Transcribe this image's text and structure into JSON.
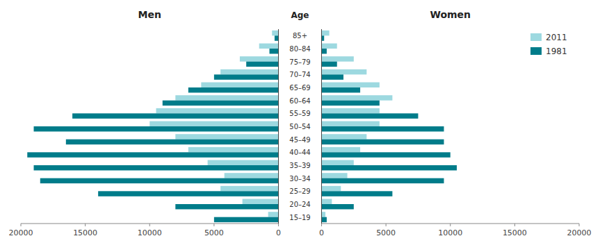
{
  "chart_data": [
    {
      "type": "bar",
      "orientation": "horizontal",
      "title": "Men",
      "ylabel": "Age",
      "categories": [
        "15–19",
        "20–24",
        "25–29",
        "30–34",
        "35–39",
        "40–44",
        "45–49",
        "50–54",
        "55–59",
        "60–64",
        "65–69",
        "70–74",
        "75–79",
        "80–84",
        "85+"
      ],
      "series": [
        {
          "color": "#9dd9e0",
          "values": [
            800,
            2800,
            4500,
            4200,
            5500,
            7000,
            8000,
            10000,
            9500,
            8000,
            6000,
            4500,
            3000,
            1500,
            500
          ]
        },
        {
          "color": "#007c8a",
          "values": [
            5000,
            8000,
            14000,
            18500,
            19000,
            19500,
            16500,
            19000,
            16000,
            9000,
            7000,
            5000,
            2500,
            700,
            300
          ]
        }
      ],
      "xlim": [
        20000,
        0
      ],
      "xticks": [
        0,
        5000,
        10000,
        15000,
        20000
      ],
      "grid": false
    },
    {
      "type": "bar",
      "orientation": "horizontal",
      "title": "Women",
      "categories": [
        "15–19",
        "20–24",
        "25–29",
        "30–34",
        "35–39",
        "40–44",
        "45–49",
        "50–54",
        "55–59",
        "60–64",
        "65–69",
        "70–74",
        "75–79",
        "80–84",
        "85+"
      ],
      "series": [
        {
          "name": "2011",
          "color": "#9dd9e0",
          "values": [
            300,
            800,
            1500,
            2000,
            2500,
            3000,
            3500,
            4500,
            4500,
            5500,
            4500,
            3500,
            2500,
            1200,
            600
          ]
        },
        {
          "name": "1981",
          "color": "#007c8a",
          "values": [
            400,
            2500,
            5500,
            9500,
            10500,
            10000,
            9500,
            9500,
            7500,
            4500,
            3000,
            1700,
            1200,
            400,
            200
          ]
        }
      ],
      "xlim": [
        0,
        20000
      ],
      "xticks": [
        0,
        5000,
        10000,
        15000,
        20000
      ],
      "grid": false,
      "legend": "upper right",
      "tick_labels": "x"
    }
  ]
}
